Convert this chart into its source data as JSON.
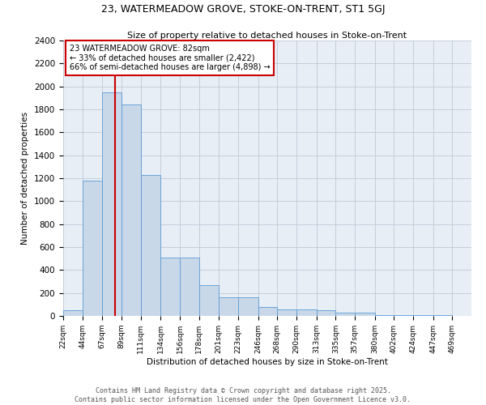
{
  "title1": "23, WATERMEADOW GROVE, STOKE-ON-TRENT, ST1 5GJ",
  "title2": "Size of property relative to detached houses in Stoke-on-Trent",
  "xlabel": "Distribution of detached houses by size in Stoke-on-Trent",
  "ylabel": "Number of detached properties",
  "annotation_line1": "23 WATERMEADOW GROVE: 82sqm",
  "annotation_line2": "← 33% of detached houses are smaller (2,422)",
  "annotation_line3": "66% of semi-detached houses are larger (4,898) →",
  "bin_labels": [
    "22sqm",
    "44sqm",
    "67sqm",
    "89sqm",
    "111sqm",
    "134sqm",
    "156sqm",
    "178sqm",
    "201sqm",
    "223sqm",
    "246sqm",
    "268sqm",
    "290sqm",
    "313sqm",
    "335sqm",
    "357sqm",
    "380sqm",
    "402sqm",
    "424sqm",
    "447sqm",
    "469sqm"
  ],
  "bin_edges": [
    22,
    44,
    67,
    89,
    111,
    134,
    156,
    178,
    201,
    223,
    246,
    268,
    290,
    313,
    335,
    357,
    380,
    402,
    424,
    447,
    469,
    491
  ],
  "bar_heights": [
    50,
    1180,
    1950,
    1840,
    1230,
    510,
    510,
    265,
    160,
    160,
    75,
    55,
    55,
    50,
    30,
    30,
    10,
    10,
    5,
    5,
    3
  ],
  "bar_color": "#c8d8e8",
  "bar_edge_color": "#5b9bd5",
  "vline_x": 82,
  "vline_color": "#cc0000",
  "annotation_box_color": "#cc0000",
  "bg_axes": "#e8eef5",
  "bg_fig": "#ffffff",
  "grid_color": "#c0c8d8",
  "footer_line1": "Contains HM Land Registry data © Crown copyright and database right 2025.",
  "footer_line2": "Contains public sector information licensed under the Open Government Licence v3.0.",
  "ylim": [
    0,
    2400
  ],
  "yticks": [
    0,
    200,
    400,
    600,
    800,
    1000,
    1200,
    1400,
    1600,
    1800,
    2000,
    2200,
    2400
  ]
}
